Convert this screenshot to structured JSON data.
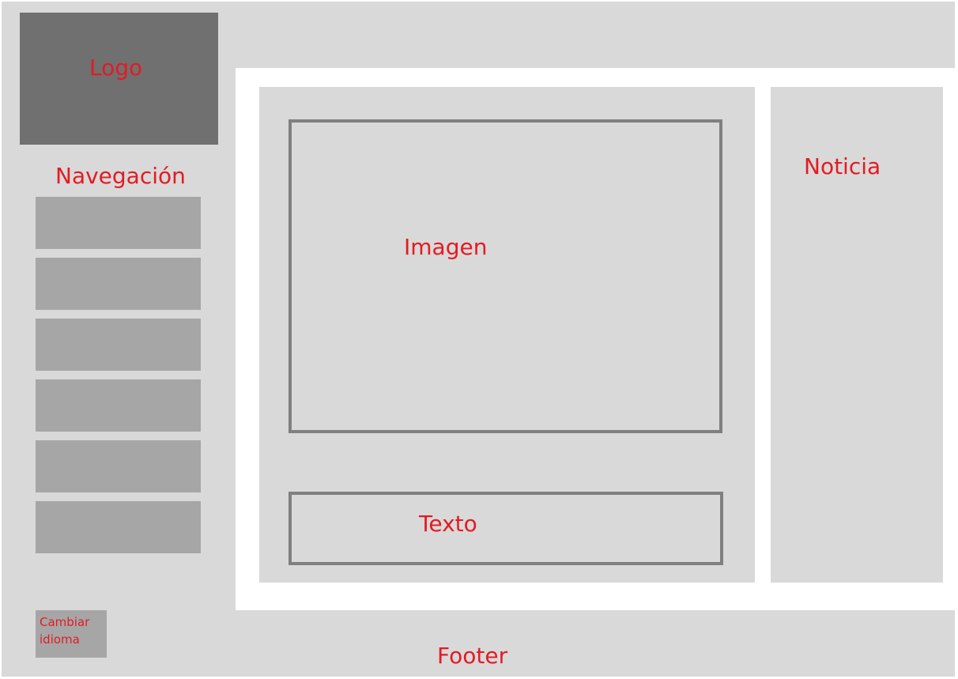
{
  "logo": {
    "label": "Logo"
  },
  "navigation": {
    "title": "Navegación",
    "items": [
      "",
      "",
      "",
      "",
      "",
      ""
    ]
  },
  "language": {
    "label": "Cambiar idioma"
  },
  "main": {
    "image_label": "Imagen",
    "text_label": "Texto"
  },
  "news": {
    "label": "Noticia"
  },
  "footer": {
    "label": "Footer"
  },
  "colors": {
    "label_red": "#e31b23",
    "frame_gray": "#d9d9d9",
    "logo_gray": "#707070",
    "nav_gray": "#a6a6a6",
    "border_gray": "#808080"
  }
}
